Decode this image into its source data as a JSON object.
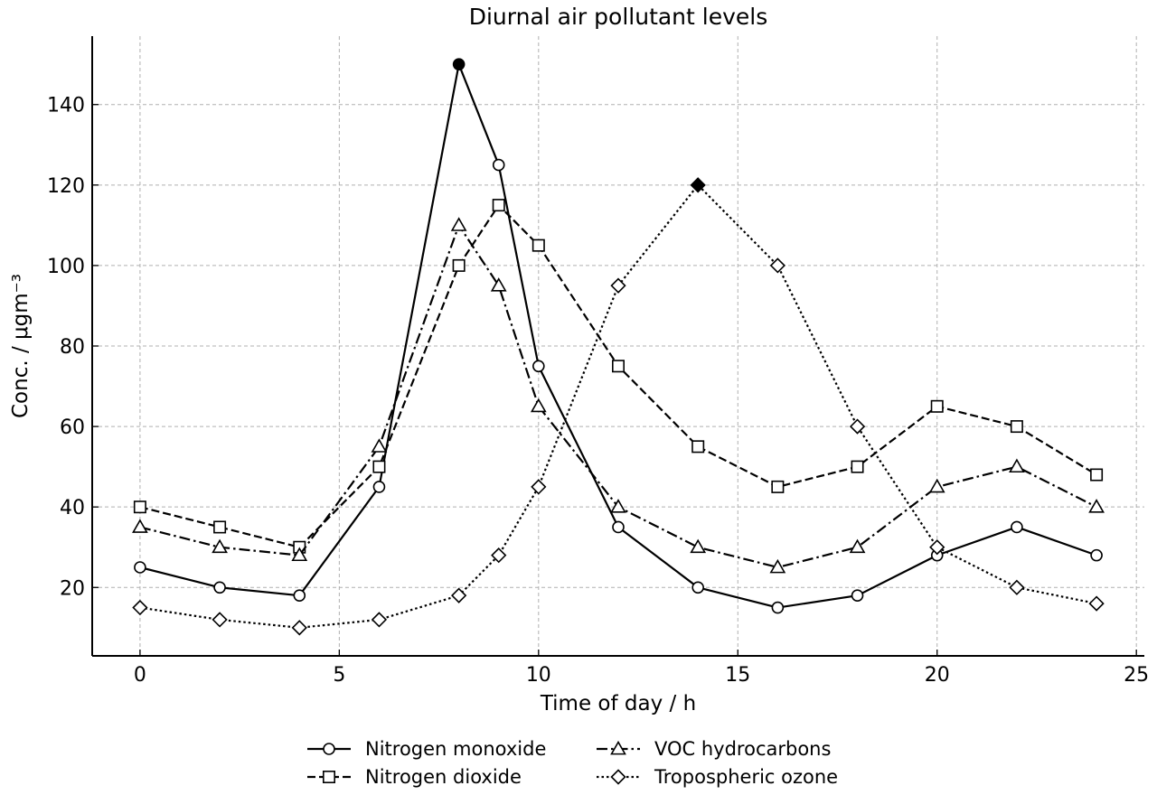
{
  "chart_data": {
    "type": "line",
    "title": "Diurnal air pollutant levels",
    "xlabel": "Time of day / h",
    "ylabel": "Conc. / μgm⁻³",
    "xlim": [
      -1.2,
      25.2
    ],
    "ylim": [
      3,
      157
    ],
    "xticks": [
      0,
      5,
      10,
      15,
      20,
      25
    ],
    "yticks": [
      20,
      40,
      60,
      80,
      100,
      120,
      140
    ],
    "grid": true,
    "legend_position": "bottom-center",
    "x": [
      0,
      2,
      4,
      6,
      8,
      9,
      10,
      12,
      14,
      16,
      18,
      20,
      22,
      24
    ],
    "series": [
      {
        "name": "Nitrogen monoxide",
        "marker": "circle",
        "dash": "solid",
        "values": [
          25,
          20,
          18,
          45,
          150,
          125,
          75,
          35,
          20,
          15,
          18,
          28,
          35,
          28
        ],
        "highlight_index": 4
      },
      {
        "name": "Nitrogen dioxide",
        "marker": "square",
        "dash": "dashed",
        "values": [
          40,
          35,
          30,
          50,
          100,
          115,
          105,
          75,
          55,
          45,
          50,
          65,
          60,
          48
        ],
        "highlight_index": null
      },
      {
        "name": "VOC hydrocarbons",
        "marker": "triangle",
        "dash": "dashdot",
        "values": [
          35,
          30,
          28,
          55,
          110,
          95,
          65,
          40,
          30,
          25,
          30,
          45,
          50,
          40
        ],
        "highlight_index": null
      },
      {
        "name": "Tropospheric ozone",
        "marker": "diamond",
        "dash": "dotted",
        "values": [
          15,
          12,
          10,
          12,
          18,
          28,
          45,
          95,
          120,
          100,
          60,
          30,
          20,
          16
        ],
        "highlight_index": 8
      }
    ],
    "colors": {
      "line": "#000000",
      "grid": "#b0b0b0",
      "marker_fill": "#ffffff",
      "highlight_fill": "#000000"
    }
  }
}
